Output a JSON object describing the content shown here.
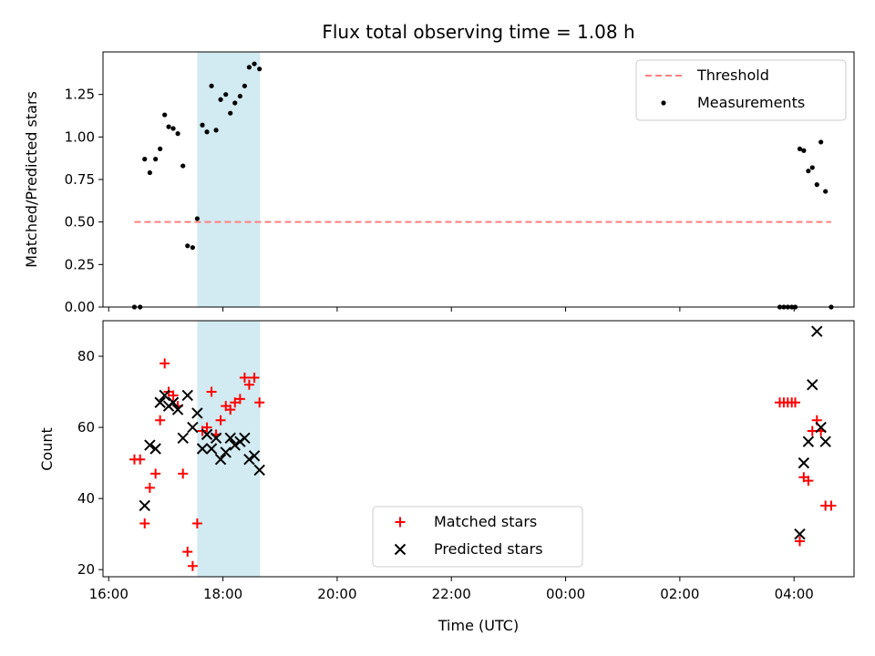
{
  "chart_data": {
    "type": "scatter",
    "title": "Flux total observing time = 1.08 h",
    "xlabel": "Time (UTC)",
    "x_unit": "hours since 16:00 UTC",
    "xlim": [
      -0.1,
      13.05
    ],
    "x_ticks": [
      {
        "x": 0,
        "label": "16:00"
      },
      {
        "x": 2,
        "label": "18:00"
      },
      {
        "x": 4,
        "label": "20:00"
      },
      {
        "x": 6,
        "label": "22:00"
      },
      {
        "x": 8,
        "label": "00:00"
      },
      {
        "x": 10,
        "label": "02:00"
      },
      {
        "x": 12,
        "label": "04:00"
      }
    ],
    "shaded_span": [
      1.55,
      2.65
    ],
    "shade_color": "#add8e6",
    "panels": [
      {
        "id": "ratio",
        "ylabel": "Matched/Predicted stars",
        "ylim": [
          0,
          1.5
        ],
        "y_ticks": [
          {
            "y": 0,
            "label": "0.00"
          },
          {
            "y": 0.25,
            "label": "0.25"
          },
          {
            "y": 0.5,
            "label": "0.50"
          },
          {
            "y": 0.75,
            "label": "0.75"
          },
          {
            "y": 1.0,
            "label": "1.00"
          },
          {
            "y": 1.25,
            "label": "1.25"
          }
        ],
        "threshold": {
          "name": "Threshold",
          "y": 0.5,
          "x_range": [
            0.45,
            12.65
          ],
          "color": "#ff7f7f"
        },
        "legend": [
          {
            "kind": "line",
            "label": "Threshold"
          },
          {
            "kind": "dot",
            "label": "Measurements"
          }
        ],
        "series": [
          {
            "name": "Measurements",
            "marker": "dot",
            "color": "#000000",
            "points": [
              [
                0.45,
                0.0
              ],
              [
                0.55,
                0.0
              ],
              [
                0.63,
                0.87
              ],
              [
                0.72,
                0.79
              ],
              [
                0.82,
                0.87
              ],
              [
                0.9,
                0.93
              ],
              [
                0.98,
                1.13
              ],
              [
                1.05,
                1.06
              ],
              [
                1.13,
                1.05
              ],
              [
                1.21,
                1.02
              ],
              [
                1.3,
                0.83
              ],
              [
                1.38,
                0.36
              ],
              [
                1.47,
                0.35
              ],
              [
                1.55,
                0.52
              ],
              [
                1.64,
                1.07
              ],
              [
                1.72,
                1.03
              ],
              [
                1.8,
                1.3
              ],
              [
                1.88,
                1.04
              ],
              [
                1.96,
                1.22
              ],
              [
                2.05,
                1.25
              ],
              [
                2.13,
                1.14
              ],
              [
                2.21,
                1.2
              ],
              [
                2.3,
                1.24
              ],
              [
                2.38,
                1.3
              ],
              [
                2.46,
                1.41
              ],
              [
                2.55,
                1.43
              ],
              [
                2.64,
                1.4
              ],
              [
                11.75,
                0.0
              ],
              [
                11.82,
                0.0
              ],
              [
                11.89,
                0.0
              ],
              [
                11.96,
                0.0
              ],
              [
                12.02,
                0.0
              ],
              [
                12.1,
                0.93
              ],
              [
                12.17,
                0.92
              ],
              [
                12.25,
                0.8
              ],
              [
                12.32,
                0.82
              ],
              [
                12.4,
                0.72
              ],
              [
                12.47,
                0.97
              ],
              [
                12.55,
                0.68
              ],
              [
                12.65,
                0.0
              ]
            ]
          }
        ]
      },
      {
        "id": "counts",
        "ylabel": "Count",
        "ylim": [
          18,
          90
        ],
        "y_ticks": [
          {
            "y": 20,
            "label": "20"
          },
          {
            "y": 40,
            "label": "40"
          },
          {
            "y": 60,
            "label": "60"
          },
          {
            "y": 80,
            "label": "80"
          }
        ],
        "legend": [
          {
            "kind": "plus",
            "label": "Matched stars"
          },
          {
            "kind": "cross",
            "label": "Predicted stars"
          }
        ],
        "series": [
          {
            "name": "Matched stars",
            "marker": "plus",
            "color": "#ff0000",
            "points": [
              [
                0.45,
                51
              ],
              [
                0.55,
                51
              ],
              [
                0.63,
                33
              ],
              [
                0.72,
                43
              ],
              [
                0.82,
                47
              ],
              [
                0.9,
                62
              ],
              [
                0.98,
                78
              ],
              [
                1.05,
                70
              ],
              [
                1.13,
                69
              ],
              [
                1.21,
                66
              ],
              [
                1.3,
                47
              ],
              [
                1.38,
                25
              ],
              [
                1.47,
                21
              ],
              [
                1.55,
                33
              ],
              [
                1.64,
                59
              ],
              [
                1.72,
                60
              ],
              [
                1.8,
                70
              ],
              [
                1.88,
                58
              ],
              [
                1.96,
                62
              ],
              [
                2.05,
                66
              ],
              [
                2.13,
                65
              ],
              [
                2.21,
                67
              ],
              [
                2.3,
                68
              ],
              [
                2.38,
                74
              ],
              [
                2.46,
                72
              ],
              [
                2.55,
                74
              ],
              [
                2.64,
                67
              ],
              [
                11.75,
                67
              ],
              [
                11.82,
                67
              ],
              [
                11.89,
                67
              ],
              [
                11.96,
                67
              ],
              [
                12.02,
                67
              ],
              [
                12.1,
                28
              ],
              [
                12.17,
                46
              ],
              [
                12.25,
                45
              ],
              [
                12.32,
                59
              ],
              [
                12.4,
                62
              ],
              [
                12.47,
                59
              ],
              [
                12.55,
                38
              ],
              [
                12.65,
                38
              ]
            ]
          },
          {
            "name": "Predicted stars",
            "marker": "cross",
            "color": "#000000",
            "points": [
              [
                0.63,
                38
              ],
              [
                0.72,
                55
              ],
              [
                0.82,
                54
              ],
              [
                0.9,
                67
              ],
              [
                0.98,
                69
              ],
              [
                1.05,
                66
              ],
              [
                1.13,
                67
              ],
              [
                1.21,
                65
              ],
              [
                1.3,
                57
              ],
              [
                1.38,
                69
              ],
              [
                1.47,
                60
              ],
              [
                1.55,
                64
              ],
              [
                1.64,
                54
              ],
              [
                1.72,
                58
              ],
              [
                1.8,
                54
              ],
              [
                1.88,
                57
              ],
              [
                1.96,
                51
              ],
              [
                2.05,
                53
              ],
              [
                2.13,
                57
              ],
              [
                2.21,
                55
              ],
              [
                2.3,
                56
              ],
              [
                2.38,
                57
              ],
              [
                2.46,
                51
              ],
              [
                2.55,
                52
              ],
              [
                2.64,
                48
              ],
              [
                12.1,
                30
              ],
              [
                12.17,
                50
              ],
              [
                12.25,
                56
              ],
              [
                12.32,
                72
              ],
              [
                12.4,
                87
              ],
              [
                12.47,
                60
              ],
              [
                12.55,
                56
              ]
            ]
          }
        ]
      }
    ]
  }
}
